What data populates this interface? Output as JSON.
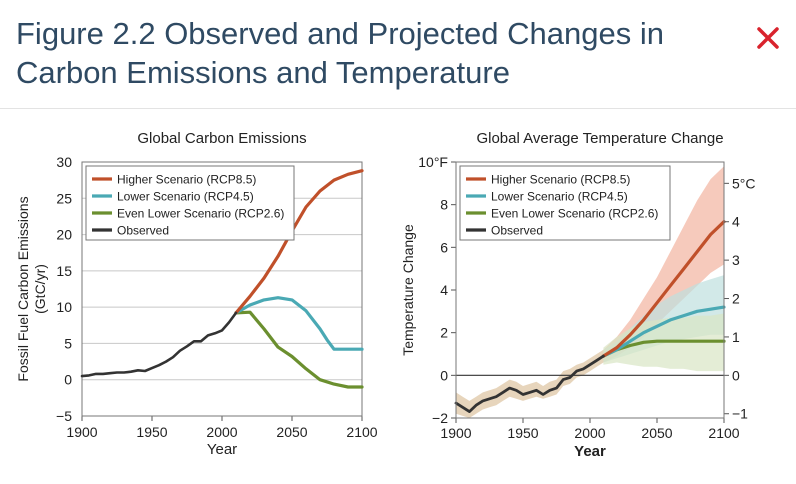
{
  "dialog": {
    "title": "Figure 2.2 Observed and Projected Changes in Carbon Emissions and Temperature",
    "close_icon": "close-icon",
    "close_color": "#d9232d"
  },
  "colors": {
    "rcp85": "#c0502a",
    "rcp45": "#4aa9b4",
    "rcp26": "#6b8f2f",
    "observed": "#333333",
    "band85": "#f2b49f",
    "band45": "#bfe0de",
    "band26": "#d9e6c4",
    "band_obs": "#ddc3a0"
  },
  "chart_data": [
    {
      "type": "line",
      "title": "Global Carbon Emissions",
      "xlabel": "Year",
      "ylabel": "Fossil Fuel Carbon Emissions (GtC/yr)",
      "xlim": [
        1900,
        2100
      ],
      "ylim": [
        -5,
        30
      ],
      "xticks": [
        "1900",
        "1950",
        "2000",
        "2050",
        "2100"
      ],
      "yticks": [
        "−5",
        "0",
        "5",
        "10",
        "15",
        "20",
        "25",
        "30"
      ],
      "grid": true,
      "legend_position": "top-left",
      "series": [
        {
          "name": "Higher Scenario (RCP8.5)",
          "key": "rcp85",
          "x": [
            2010,
            2020,
            2030,
            2040,
            2050,
            2060,
            2070,
            2080,
            2090,
            2100
          ],
          "y": [
            9.2,
            11.5,
            14,
            17,
            20.5,
            23.8,
            26,
            27.5,
            28.3,
            28.8
          ]
        },
        {
          "name": "Lower Scenario (RCP4.5)",
          "key": "rcp45",
          "x": [
            2010,
            2020,
            2030,
            2040,
            2050,
            2060,
            2070,
            2075,
            2080,
            2090,
            2100
          ],
          "y": [
            9.2,
            10.3,
            11,
            11.3,
            11,
            9.5,
            7,
            5.5,
            4.2,
            4.2,
            4.2
          ]
        },
        {
          "name": "Even Lower Scenario (RCP2.6)",
          "key": "rcp26",
          "x": [
            2010,
            2020,
            2030,
            2040,
            2050,
            2060,
            2070,
            2080,
            2090,
            2100
          ],
          "y": [
            9.2,
            9.3,
            7,
            4.5,
            3.2,
            1.5,
            0,
            -0.6,
            -1,
            -1
          ]
        },
        {
          "name": "Observed",
          "key": "observed",
          "x": [
            1900,
            1905,
            1910,
            1915,
            1920,
            1925,
            1930,
            1935,
            1940,
            1945,
            1950,
            1955,
            1960,
            1965,
            1970,
            1975,
            1980,
            1985,
            1990,
            1995,
            2000,
            2005,
            2010
          ],
          "y": [
            0.5,
            0.6,
            0.8,
            0.8,
            0.9,
            1,
            1,
            1.1,
            1.3,
            1.2,
            1.6,
            2,
            2.5,
            3.1,
            4,
            4.6,
            5.3,
            5.3,
            6.1,
            6.4,
            6.8,
            7.9,
            9.2
          ]
        }
      ]
    },
    {
      "type": "line",
      "title": "Global Average Temperature Change",
      "xlabel": "Year",
      "ylabel": "Temperature Change",
      "xlim": [
        1900,
        2100
      ],
      "ylim": [
        -2,
        10
      ],
      "xticks": [
        "1900",
        "1950",
        "2000",
        "2050",
        "2100"
      ],
      "yticks": [
        "−2",
        "0",
        "2",
        "4",
        "6",
        "8",
        "10°F"
      ],
      "yticks_right": [
        "−1",
        "0",
        "1",
        "2",
        "3",
        "4",
        "5°C"
      ],
      "grid": false,
      "zero_line": true,
      "legend_position": "top-left",
      "series": [
        {
          "name": "Higher Scenario (RCP8.5)",
          "key": "rcp85",
          "x": [
            2010,
            2020,
            2030,
            2040,
            2050,
            2060,
            2070,
            2080,
            2090,
            2100
          ],
          "y": [
            0.9,
            1.3,
            1.9,
            2.6,
            3.4,
            4.2,
            5.0,
            5.8,
            6.6,
            7.2
          ],
          "band_low": [
            0.6,
            0.9,
            1.3,
            1.8,
            2.4,
            3.0,
            3.6,
            4.2,
            4.8,
            5.2
          ],
          "band_high": [
            1.2,
            1.8,
            2.6,
            3.6,
            4.6,
            5.8,
            7.0,
            8.2,
            9.2,
            9.8
          ]
        },
        {
          "name": "Lower Scenario (RCP4.5)",
          "key": "rcp45",
          "x": [
            2010,
            2020,
            2030,
            2040,
            2050,
            2060,
            2070,
            2080,
            2090,
            2100
          ],
          "y": [
            0.9,
            1.2,
            1.6,
            2.0,
            2.3,
            2.6,
            2.8,
            3.0,
            3.1,
            3.2
          ],
          "band_low": [
            0.6,
            0.8,
            1.0,
            1.2,
            1.4,
            1.6,
            1.7,
            1.8,
            1.9,
            1.9
          ],
          "band_high": [
            1.2,
            1.6,
            2.2,
            2.8,
            3.3,
            3.7,
            4.0,
            4.3,
            4.5,
            4.7
          ]
        },
        {
          "name": "Even Lower Scenario (RCP2.6)",
          "key": "rcp26",
          "x": [
            2010,
            2020,
            2030,
            2040,
            2050,
            2060,
            2070,
            2080,
            2090,
            2100
          ],
          "y": [
            0.9,
            1.2,
            1.4,
            1.55,
            1.6,
            1.6,
            1.6,
            1.6,
            1.6,
            1.6
          ],
          "band_low": [
            0.5,
            0.6,
            0.5,
            0.4,
            0.4,
            0.3,
            0.3,
            0.2,
            0.2,
            0.2
          ],
          "band_high": [
            1.3,
            1.8,
            2.2,
            2.5,
            2.6,
            2.7,
            2.7,
            2.8,
            2.8,
            2.9
          ]
        },
        {
          "name": "Observed",
          "key": "observed",
          "x": [
            1900,
            1905,
            1910,
            1915,
            1920,
            1925,
            1930,
            1935,
            1940,
            1945,
            1950,
            1955,
            1960,
            1965,
            1970,
            1975,
            1980,
            1985,
            1990,
            1995,
            2000,
            2005,
            2010
          ],
          "y": [
            -1.3,
            -1.5,
            -1.7,
            -1.4,
            -1.2,
            -1.1,
            -1.0,
            -0.8,
            -0.6,
            -0.7,
            -0.9,
            -0.8,
            -0.7,
            -0.9,
            -0.7,
            -0.6,
            -0.2,
            -0.1,
            0.2,
            0.3,
            0.5,
            0.7,
            0.9
          ],
          "band_low": [
            -1.8,
            -1.9,
            -2.0,
            -1.8,
            -1.6,
            -1.5,
            -1.4,
            -1.2,
            -1.0,
            -1.1,
            -1.2,
            -1.1,
            -1.0,
            -1.1,
            -1.0,
            -0.9,
            -0.5,
            -0.4,
            -0.1,
            0.0,
            0.2,
            0.4,
            0.6
          ],
          "band_high": [
            -0.8,
            -1.0,
            -1.2,
            -1.0,
            -0.8,
            -0.7,
            -0.6,
            -0.4,
            -0.2,
            -0.3,
            -0.5,
            -0.4,
            -0.3,
            -0.5,
            -0.3,
            -0.2,
            0.2,
            0.3,
            0.5,
            0.6,
            0.8,
            1.0,
            1.2
          ]
        }
      ]
    }
  ]
}
